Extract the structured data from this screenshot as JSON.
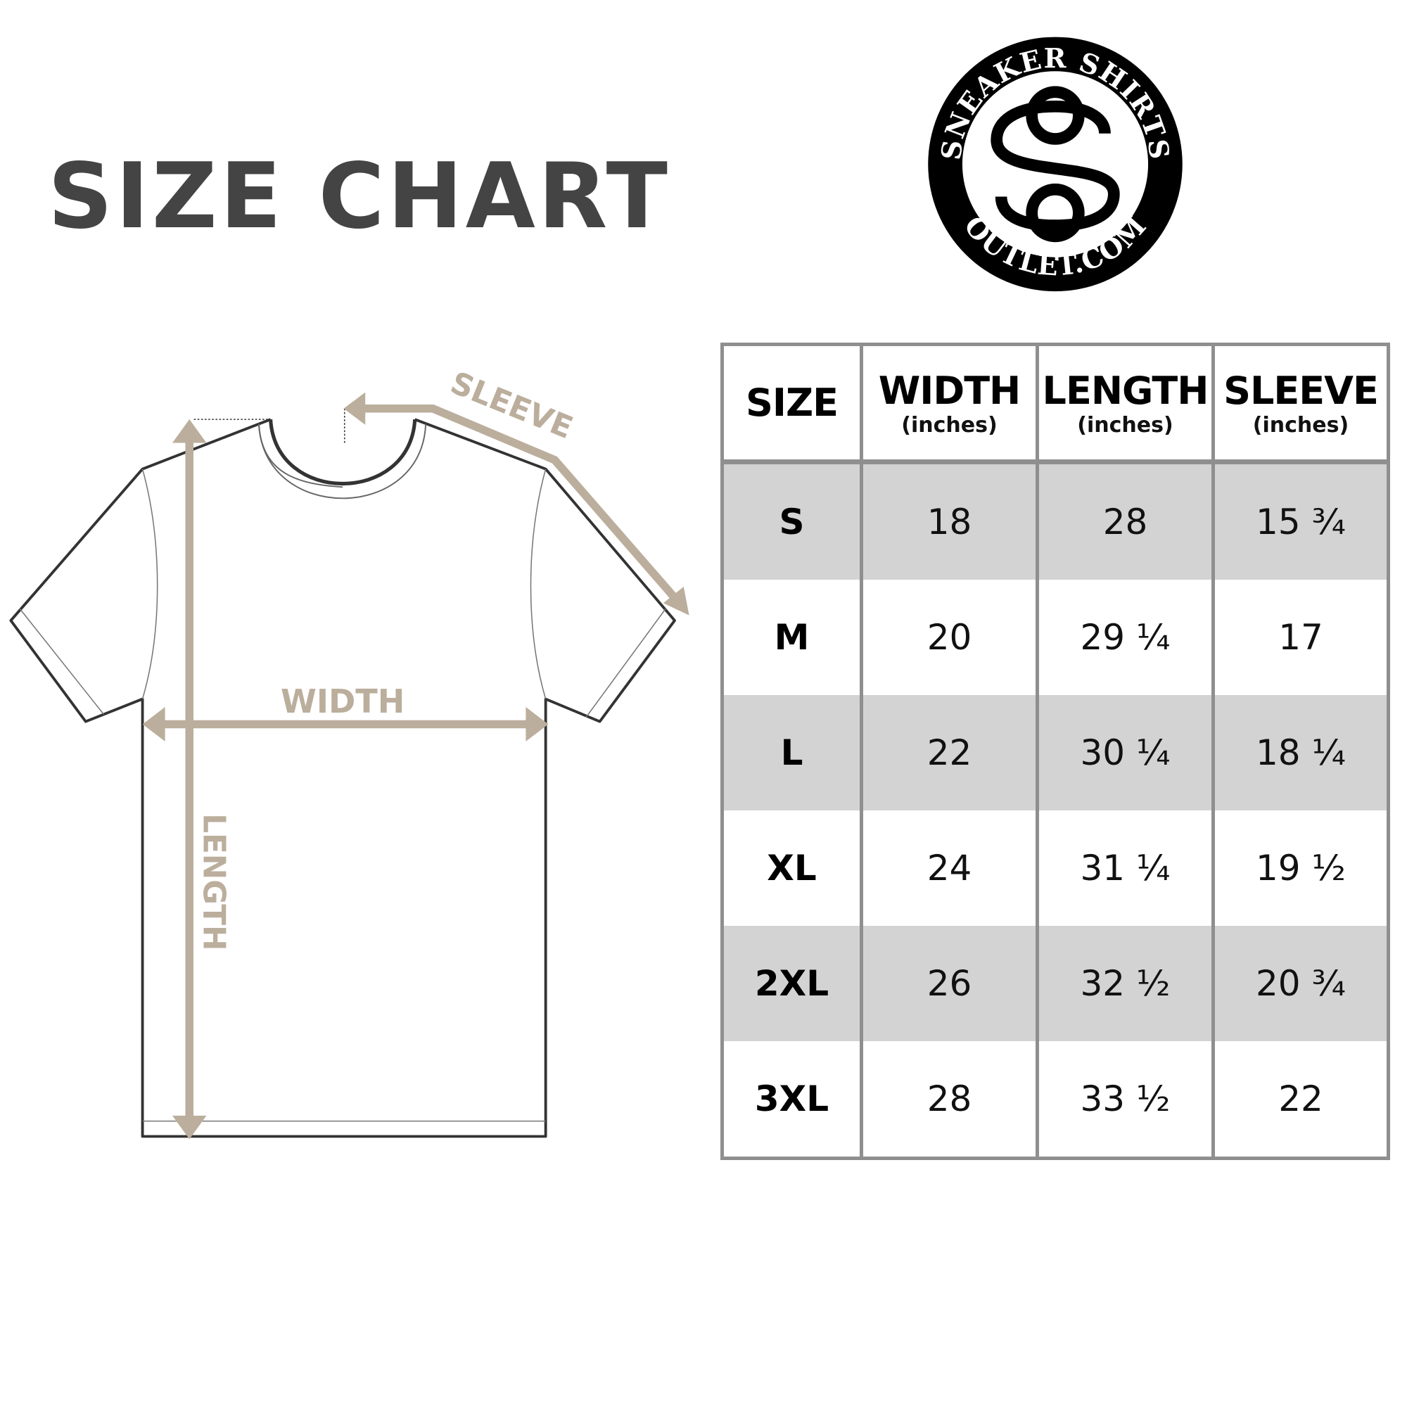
{
  "title": "SIZE CHART",
  "logo": {
    "top_text": "SNEAKER SHIRTS",
    "bottom_text": "OUTLET.COM",
    "monogram": "SO"
  },
  "diagram": {
    "sleeve_label": "SLEEVE",
    "width_label": "WIDTH",
    "length_label": "LENGTH"
  },
  "colors": {
    "title": "#444444",
    "arrows": "#bbae9c",
    "row_shade": "#d3d3d3",
    "grid": "#8f8f8f"
  },
  "table": {
    "headers": [
      {
        "label": "SIZE",
        "unit": ""
      },
      {
        "label": "WIDTH",
        "unit": "(inches)"
      },
      {
        "label": "LENGTH",
        "unit": "(inches)"
      },
      {
        "label": "SLEEVE",
        "unit": "(inches)"
      }
    ],
    "rows": [
      [
        "S",
        "18",
        "28",
        "15 ¾"
      ],
      [
        "M",
        "20",
        "29 ¼",
        "17"
      ],
      [
        "L",
        "22",
        "30 ¼",
        "18 ¼"
      ],
      [
        "XL",
        "24",
        "31 ¼",
        "19 ½"
      ],
      [
        "2XL",
        "26",
        "32 ½",
        "20 ¾"
      ],
      [
        "3XL",
        "28",
        "33 ½",
        "22"
      ]
    ]
  }
}
